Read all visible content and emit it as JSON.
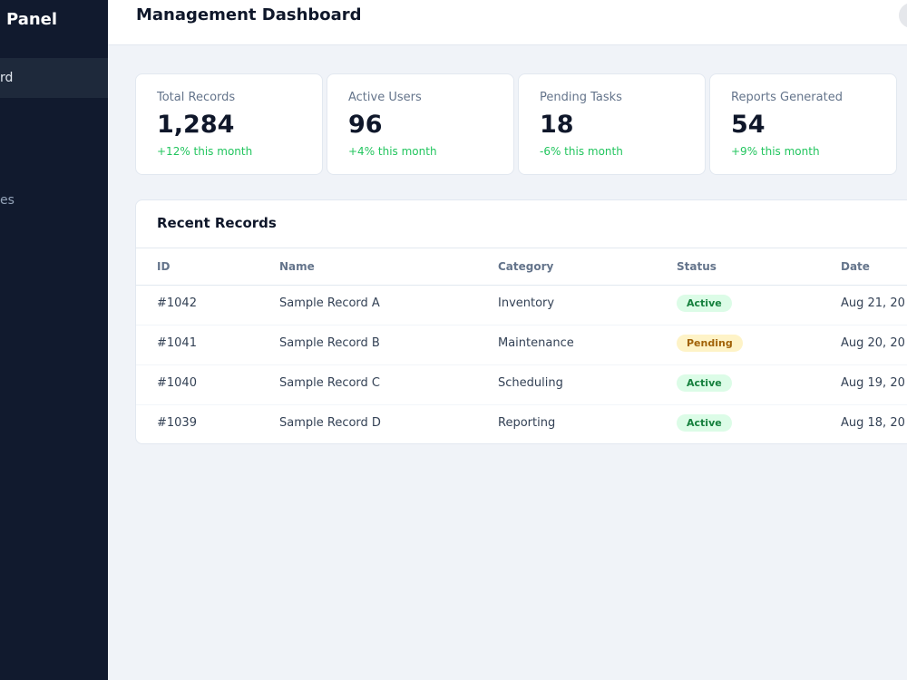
{
  "sidebar": {
    "title": "Panel",
    "items": [
      "rd",
      "es"
    ]
  },
  "header": {
    "title": "Management Dashboard"
  },
  "stats": [
    {
      "label": "Total Records",
      "value": "1,284",
      "change": "+12% this month"
    },
    {
      "label": "Active Users",
      "value": "96",
      "change": "+4% this month"
    },
    {
      "label": "Pending Tasks",
      "value": "18",
      "change": "-6% this month"
    },
    {
      "label": "Reports Generated",
      "value": "54",
      "change": "+9% this month"
    }
  ],
  "table": {
    "title": "Recent Records",
    "columns": [
      "ID",
      "Name",
      "Category",
      "Status",
      "Date"
    ],
    "rows": [
      [
        "#1042",
        "Sample Record A",
        "Inventory",
        "Active",
        "Aug 21, 20"
      ],
      [
        "#1041",
        "Sample Record B",
        "Maintenance",
        "Pending",
        "Aug 20, 20"
      ],
      [
        "#1040",
        "Sample Record C",
        "Scheduling",
        "Active",
        "Aug 19, 20"
      ],
      [
        "#1039",
        "Sample Record D",
        "Reporting",
        "Active",
        "Aug 18, 20"
      ]
    ]
  }
}
